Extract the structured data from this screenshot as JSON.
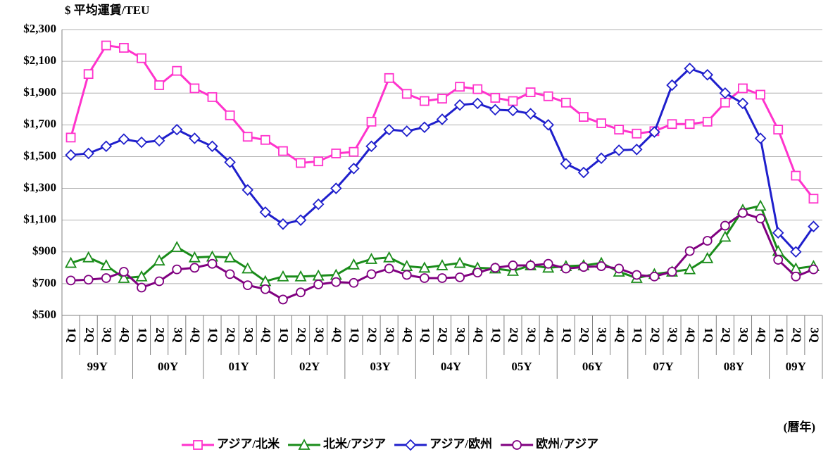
{
  "chart_data": {
    "type": "line",
    "y_label": "$ 平均運賃/TEU",
    "x_label": "(暦年)",
    "categories": [
      "1Q",
      "2Q",
      "3Q",
      "4Q",
      "1Q",
      "2Q",
      "3Q",
      "4Q",
      "1Q",
      "2Q",
      "3Q",
      "4Q",
      "1Q",
      "2Q",
      "3Q",
      "4Q",
      "1Q",
      "2Q",
      "3Q",
      "4Q",
      "1Q",
      "2Q",
      "3Q",
      "4Q",
      "1Q",
      "2Q",
      "3Q",
      "4Q",
      "1Q",
      "2Q",
      "3Q",
      "4Q",
      "1Q",
      "2Q",
      "3Q",
      "4Q",
      "1Q",
      "2Q",
      "3Q",
      "4Q",
      "1Q",
      "2Q",
      "3Q"
    ],
    "groups": [
      "99Y",
      "00Y",
      "01Y",
      "02Y",
      "03Y",
      "04Y",
      "05Y",
      "06Y",
      "07Y",
      "08Y",
      "09Y"
    ],
    "ylim": [
      500,
      2300
    ],
    "yticks": [
      {
        "value": 500,
        "label": "$500"
      },
      {
        "value": 700,
        "label": "$700"
      },
      {
        "value": 900,
        "label": "$900"
      },
      {
        "value": 1100,
        "label": "$1,100"
      },
      {
        "value": 1300,
        "label": "$1,300"
      },
      {
        "value": 1500,
        "label": "$1,500"
      },
      {
        "value": 1700,
        "label": "$1,700"
      },
      {
        "value": 1900,
        "label": "$1,900"
      },
      {
        "value": 2100,
        "label": "$2,100"
      },
      {
        "value": 2300,
        "label": "$2,300"
      }
    ],
    "grid": true,
    "series": [
      {
        "name": "アジア/北米",
        "color": "#ff33cc",
        "marker": "square",
        "values": [
          1620,
          2020,
          2200,
          2185,
          2120,
          1950,
          2040,
          1930,
          1875,
          1760,
          1625,
          1605,
          1535,
          1460,
          1470,
          1520,
          1530,
          1720,
          1995,
          1895,
          1850,
          1865,
          1940,
          1925,
          1870,
          1850,
          1905,
          1880,
          1840,
          1750,
          1710,
          1670,
          1645,
          1660,
          1705,
          1705,
          1720,
          1840,
          1930,
          1890,
          1670,
          1380,
          1235
        ]
      },
      {
        "name": "北米/アジア",
        "color": "#1a8c1a",
        "marker": "triangle",
        "values": [
          830,
          865,
          815,
          735,
          745,
          845,
          930,
          865,
          870,
          865,
          795,
          715,
          745,
          745,
          750,
          755,
          820,
          855,
          865,
          810,
          800,
          815,
          830,
          800,
          795,
          780,
          815,
          800,
          810,
          815,
          830,
          775,
          735,
          760,
          775,
          790,
          860,
          995,
          1165,
          1190,
          905,
          795,
          810
        ]
      },
      {
        "name": "アジア/欧州",
        "color": "#1f1fcc",
        "marker": "diamond",
        "values": [
          1510,
          1520,
          1565,
          1610,
          1590,
          1600,
          1670,
          1615,
          1565,
          1465,
          1290,
          1150,
          1075,
          1100,
          1200,
          1300,
          1425,
          1565,
          1670,
          1660,
          1685,
          1735,
          1825,
          1835,
          1795,
          1790,
          1770,
          1700,
          1455,
          1400,
          1490,
          1540,
          1545,
          1655,
          1950,
          2055,
          2015,
          1900,
          1835,
          1615,
          1020,
          900,
          1060
        ]
      },
      {
        "name": "欧州/アジア",
        "color": "#800080",
        "marker": "circle",
        "values": [
          720,
          725,
          735,
          775,
          675,
          715,
          790,
          800,
          825,
          760,
          690,
          665,
          600,
          645,
          695,
          710,
          705,
          760,
          795,
          755,
          735,
          735,
          740,
          770,
          800,
          815,
          815,
          825,
          795,
          805,
          810,
          795,
          755,
          745,
          775,
          905,
          970,
          1065,
          1145,
          1110,
          850,
          745,
          790
        ]
      }
    ]
  }
}
